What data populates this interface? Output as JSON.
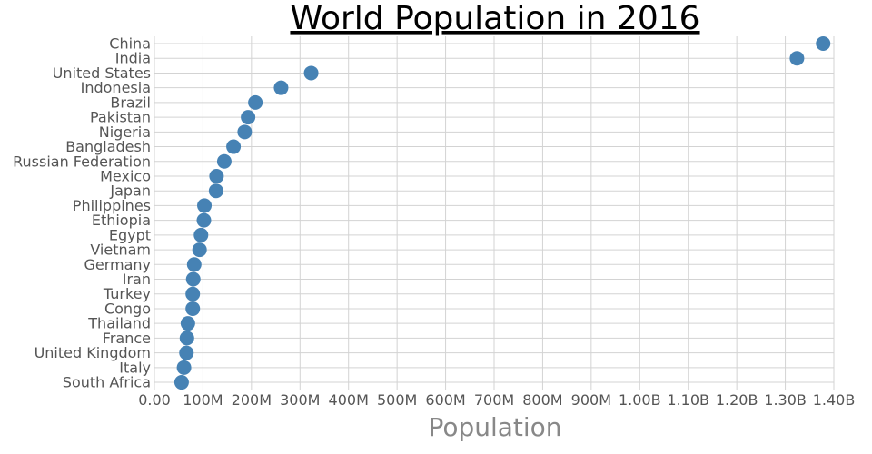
{
  "chart_data": {
    "type": "scatter",
    "title": "World Population in 2016",
    "xlabel": "Population",
    "ylabel": "",
    "xlim": [
      0,
      1400000000
    ],
    "x_ticks": [
      0,
      100000000,
      200000000,
      300000000,
      400000000,
      500000000,
      600000000,
      700000000,
      800000000,
      900000000,
      1000000000,
      1100000000,
      1200000000,
      1300000000,
      1400000000
    ],
    "x_tick_labels": [
      "0.00",
      "100M",
      "200M",
      "300M",
      "400M",
      "500M",
      "600M",
      "700M",
      "800M",
      "900M",
      "1.00B",
      "1.10B",
      "1.20B",
      "1.30B",
      "1.40B"
    ],
    "grid": true,
    "marker_color": "#4682b4",
    "categories": [
      "China",
      "India",
      "United States",
      "Indonesia",
      "Brazil",
      "Pakistan",
      "Nigeria",
      "Bangladesh",
      "Russian Federation",
      "Mexico",
      "Japan",
      "Philippines",
      "Ethiopia",
      "Egypt",
      "Vietnam",
      "Germany",
      "Iran",
      "Turkey",
      "Congo",
      "Thailand",
      "France",
      "United Kingdom",
      "Italy",
      "South Africa"
    ],
    "values": [
      1378000000,
      1324000000,
      323000000,
      261000000,
      208000000,
      193000000,
      186000000,
      163000000,
      144000000,
      128000000,
      127000000,
      103000000,
      102000000,
      96000000,
      93000000,
      82000000,
      80000000,
      79000000,
      79000000,
      69000000,
      67000000,
      66000000,
      61000000,
      56000000
    ]
  }
}
